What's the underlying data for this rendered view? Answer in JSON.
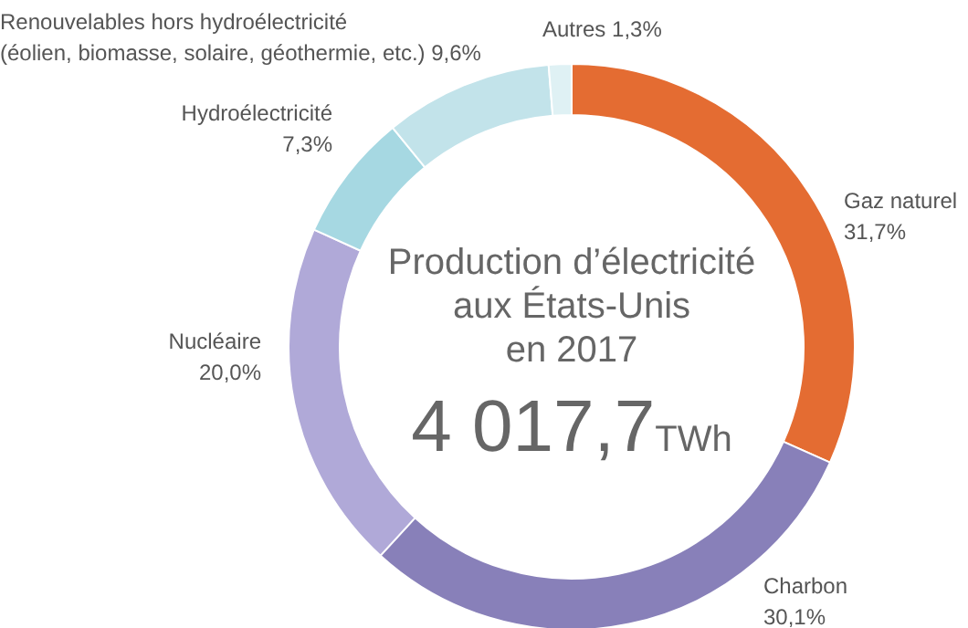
{
  "chart_data": {
    "type": "donut",
    "title": "Production d’électricité aux États-Unis en 2017",
    "annotations": [
      "4 017,7TWh"
    ],
    "categories": [
      "Gaz naturel",
      "Charbon",
      "Nucléaire",
      "Hydroélectricité",
      "Renouvelables hors hydroélectricité (éolien, biomasse, solaire, géothermie, etc.)",
      "Autres"
    ],
    "values": [
      31.7,
      30.1,
      20.0,
      7.3,
      9.6,
      1.3
    ],
    "value_labels": [
      "31,7%",
      "30,1%",
      "20,0%",
      "7,3%",
      "9,6%",
      "1,3%"
    ],
    "colors": [
      "#e46c32",
      "#8880b9",
      "#b0a9d8",
      "#a6d8e2",
      "#c2e3ea",
      "#dff1f4"
    ],
    "legend": false
  }
}
